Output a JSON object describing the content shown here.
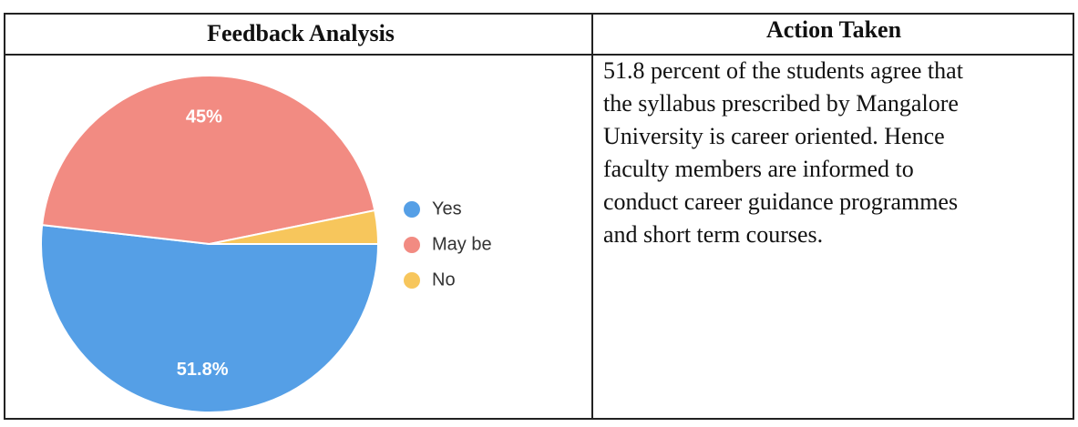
{
  "table": {
    "headers": [
      "Feedback Analysis",
      "Action Taken"
    ],
    "action_lines": [
      "51.8 percent of the students agree that",
      "the syllabus prescribed by Mangalore",
      "University is career oriented. Hence",
      "faculty members are informed to",
      "conduct career guidance programmes",
      "and short term courses."
    ]
  },
  "chart_data": {
    "type": "pie",
    "categories": [
      "Yes",
      "May be",
      "No"
    ],
    "values": [
      51.8,
      45,
      3.2
    ],
    "value_labels": [
      "51.8%",
      "45%",
      null
    ],
    "colors": [
      "#559fe6",
      "#f28b82",
      "#f7c65c"
    ],
    "legend": "right"
  }
}
